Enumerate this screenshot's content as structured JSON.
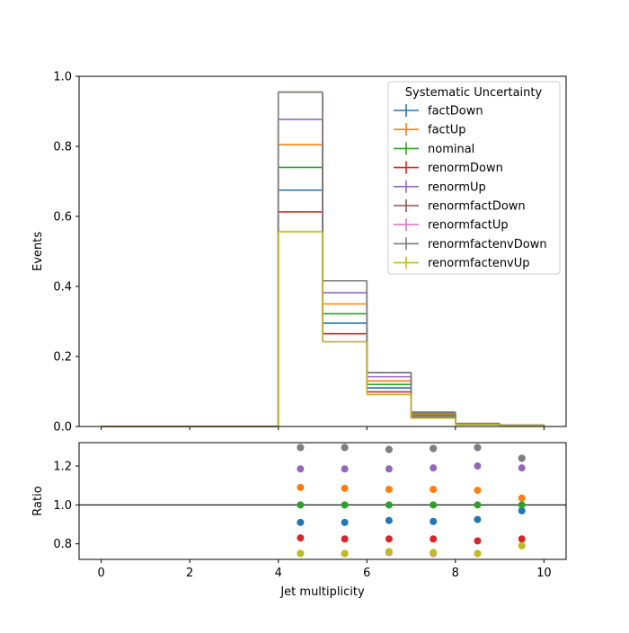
{
  "chart_data": [
    {
      "type": "step",
      "title": "",
      "xlabel": "",
      "ylabel": "Events",
      "xlim": [
        -0.5,
        10.5
      ],
      "ylim": [
        0,
        1.0
      ],
      "yticks": [
        "0.0",
        "0.2",
        "0.4",
        "0.6",
        "0.8",
        "1.0"
      ],
      "bin_edges": [
        0,
        1,
        2,
        3,
        4,
        5,
        6,
        7,
        8,
        9,
        10
      ],
      "legend": {
        "title": "Systematic Uncertainty",
        "placement": "top-right"
      },
      "series": [
        {
          "name": "factDown",
          "color": "#1f77b4",
          "values": [
            0,
            0,
            0,
            0,
            0.675,
            0.295,
            0.11,
            0.031,
            0.006,
            0.003
          ]
        },
        {
          "name": "factUp",
          "color": "#ff7f0e",
          "values": [
            0,
            0,
            0,
            0,
            0.805,
            0.35,
            0.13,
            0.034,
            0.007,
            0.004
          ]
        },
        {
          "name": "nominal",
          "color": "#2ca02c",
          "values": [
            0,
            0,
            0,
            0,
            0.74,
            0.322,
            0.12,
            0.032,
            0.0065,
            0.0035
          ]
        },
        {
          "name": "renormDown",
          "color": "#d62728",
          "values": [
            0,
            0,
            0,
            0,
            0.613,
            0.265,
            0.099,
            0.026,
            0.0053,
            0.0029
          ]
        },
        {
          "name": "renormUp",
          "color": "#9467bd",
          "values": [
            0,
            0,
            0,
            0,
            0.877,
            0.382,
            0.142,
            0.038,
            0.0078,
            0.0042
          ]
        },
        {
          "name": "renormfactDown",
          "color": "#8c564b",
          "values": [
            0,
            0,
            0,
            0,
            0.955,
            0.416,
            0.154,
            0.041,
            0.0084,
            0.0043
          ]
        },
        {
          "name": "renormfactUp",
          "color": "#e377c2",
          "values": [
            0,
            0,
            0,
            0,
            0.556,
            0.242,
            0.091,
            0.024,
            0.0049,
            0.0028
          ]
        },
        {
          "name": "renormfactenvDown",
          "color": "#7f7f7f",
          "values": [
            0,
            0,
            0,
            0,
            0.955,
            0.416,
            0.154,
            0.041,
            0.0084,
            0.0043
          ]
        },
        {
          "name": "renormfactenvUp",
          "color": "#bcbd22",
          "values": [
            0,
            0,
            0,
            0,
            0.556,
            0.242,
            0.091,
            0.024,
            0.0049,
            0.0028
          ]
        }
      ]
    },
    {
      "type": "scatter",
      "title": "",
      "xlabel": "Jet multiplicity",
      "ylabel": "Ratio",
      "xlim": [
        -0.5,
        10.5
      ],
      "ylim": [
        0.72,
        1.32
      ],
      "xticks": [
        "0",
        "2",
        "4",
        "6",
        "8",
        "10"
      ],
      "yticks": [
        "0.8",
        "1.0",
        "1.2"
      ],
      "reference_line": 1.0,
      "x": [
        4.5,
        5.5,
        6.5,
        7.5,
        8.5,
        9.5
      ],
      "series": [
        {
          "name": "factDown",
          "color": "#1f77b4",
          "values": [
            0.91,
            0.91,
            0.92,
            0.915,
            0.925,
            0.97
          ]
        },
        {
          "name": "factUp",
          "color": "#ff7f0e",
          "values": [
            1.09,
            1.085,
            1.08,
            1.08,
            1.075,
            1.035
          ]
        },
        {
          "name": "nominal",
          "color": "#2ca02c",
          "values": [
            1.0,
            1.0,
            1.0,
            1.0,
            1.0,
            1.0
          ]
        },
        {
          "name": "renormDown",
          "color": "#d62728",
          "values": [
            0.83,
            0.825,
            0.825,
            0.825,
            0.815,
            0.825
          ]
        },
        {
          "name": "renormUp",
          "color": "#9467bd",
          "values": [
            1.185,
            1.185,
            1.185,
            1.19,
            1.2,
            1.19
          ]
        },
        {
          "name": "renormfactDown",
          "color": "#8c564b",
          "values": [
            1.295,
            1.295,
            1.285,
            1.29,
            1.295,
            1.24
          ]
        },
        {
          "name": "renormfactUp",
          "color": "#e377c2",
          "values": [
            0.75,
            0.75,
            0.755,
            0.75,
            0.75,
            0.79
          ]
        },
        {
          "name": "renormfactenvDown",
          "color": "#7f7f7f",
          "values": [
            1.295,
            1.295,
            1.285,
            1.29,
            1.295,
            1.24
          ]
        },
        {
          "name": "renormfactenvUp",
          "color": "#bcbd22",
          "values": [
            0.75,
            0.75,
            0.76,
            0.755,
            0.75,
            0.79
          ]
        }
      ]
    }
  ]
}
